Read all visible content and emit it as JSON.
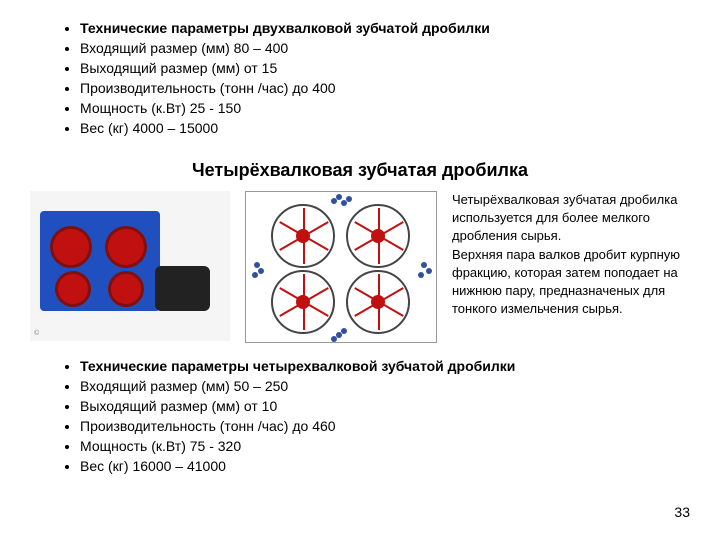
{
  "top": {
    "items": [
      {
        "text": "Технические параметры двухвалковой зубчатой дробилки",
        "bold": true
      },
      {
        "text": "Входящий размер (мм) 80 – 400"
      },
      {
        "text": "Выходящий размер (мм) от 15"
      },
      {
        "text": "Производительность (тонн /час) до 400"
      },
      {
        "text": "Мощность (к.Вт) 25 - 150"
      },
      {
        "text": "Вес (кг) 4000 – 15000"
      }
    ]
  },
  "section_title": "Четырёхвалковая зубчатая дробилка",
  "photo": {
    "body_color": "#2050c0",
    "pulley_color": "#c01010",
    "motor_color": "#222222",
    "watermark": "©"
  },
  "diagram": {
    "roller_border": "#444444",
    "spoke_color": "#c01010",
    "dot_color": "#3050a0"
  },
  "description": "Четырёхвалковая зубчатая дробилка используется для более мелкого дробления сырья.\nВерхняя пара валков дробит курпную фракцию, которая затем поподает на нижнюю пару, предназначеных для тонкого измельчения сырья.",
  "bottom": {
    "items": [
      {
        "text": "Технические параметры четырехвалковой зубчатой дробилки",
        "bold": true
      },
      {
        "text": "Входящий размер (мм) 50 – 250"
      },
      {
        "text": "Выходящий размер (мм) от 10"
      },
      {
        "text": "Производительность (тонн /час) до 460"
      },
      {
        "text": "Мощность (к.Вт) 75 - 320"
      },
      {
        "text": "Вес (кг) 16000 – 41000"
      }
    ]
  },
  "page_number": "33"
}
